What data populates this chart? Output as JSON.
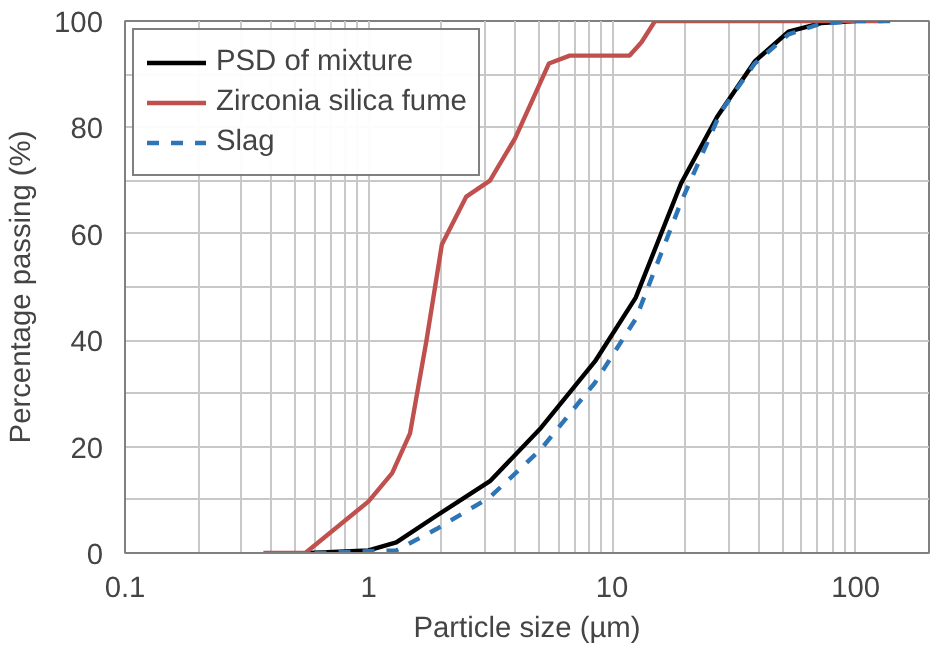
{
  "chart_data": {
    "type": "line",
    "xlabel": "Particle size (µm)",
    "ylabel": "Percentage passing (%)",
    "log": "x",
    "xlim": [
      0.1,
      200
    ],
    "ylim": [
      0,
      100
    ],
    "xticks": [
      0.1,
      {
        "value": 0.2,
        "label": null
      },
      {
        "value": 0.3,
        "label": null
      },
      {
        "value": 0.4,
        "label": null
      },
      {
        "value": 0.5,
        "label": null
      },
      {
        "value": 0.6,
        "label": null
      },
      {
        "value": 0.7,
        "label": null
      },
      {
        "value": 0.8,
        "label": null
      },
      {
        "value": 0.9,
        "label": null
      },
      1,
      {
        "value": 2,
        "label": null
      },
      {
        "value": 3,
        "label": null
      },
      {
        "value": 4,
        "label": null
      },
      {
        "value": 5,
        "label": null
      },
      {
        "value": 6,
        "label": null
      },
      {
        "value": 7,
        "label": null
      },
      {
        "value": 8,
        "label": null
      },
      {
        "value": 9,
        "label": null
      },
      10,
      {
        "value": 20,
        "label": null
      },
      {
        "value": 30,
        "label": null
      },
      {
        "value": 40,
        "label": null
      },
      {
        "value": 50,
        "label": null
      },
      {
        "value": 60,
        "label": null
      },
      {
        "value": 70,
        "label": null
      },
      {
        "value": 80,
        "label": null
      },
      {
        "value": 90,
        "label": null
      },
      100
    ],
    "yticks": [
      0,
      {
        "value": 10,
        "label": null
      },
      20,
      {
        "value": 30,
        "label": null
      },
      40,
      {
        "value": 50,
        "label": null
      },
      60,
      {
        "value": 70,
        "label": null
      },
      80,
      {
        "value": 90,
        "label": null
      },
      100
    ],
    "grid": true,
    "legend": "top left",
    "series": [
      {
        "name": "PSD of mixture",
        "color": "#000000",
        "line_style": "solid",
        "x": [
          0.57,
          1.0,
          1.3,
          1.9,
          3.15,
          5.1,
          8.5,
          12.5,
          19.2,
          27,
          38.5,
          53,
          72,
          100
        ],
        "values": [
          0,
          0.5,
          2,
          7,
          13.5,
          23.5,
          36,
          48,
          69.5,
          82,
          92.4,
          98,
          99.6,
          100
        ]
      },
      {
        "name": "Zirconia silica fume",
        "color": "#c0504d",
        "line_style": "solid",
        "x": [
          0.37,
          0.55,
          1.0,
          1.25,
          1.48,
          1.73,
          2.0,
          2.52,
          3.15,
          4.0,
          5.5,
          6.7,
          11.8,
          13.2,
          15,
          130
        ],
        "values": [
          0,
          0,
          9.7,
          15,
          22.5,
          40,
          58,
          67,
          70,
          78,
          92,
          93.5,
          93.5,
          96,
          100,
          100
        ]
      },
      {
        "name": "Slag",
        "color": "#2e75b6",
        "line_style": "dashed",
        "x": [
          0.6,
          1.3,
          1.9,
          3.15,
          5.1,
          8.5,
          12.5,
          19.2,
          28,
          38.5,
          53,
          72,
          100,
          150
        ],
        "values": [
          0,
          0.5,
          4.5,
          10.5,
          19.5,
          32,
          44,
          66,
          83,
          92,
          97.5,
          99.5,
          100,
          100
        ]
      }
    ]
  }
}
